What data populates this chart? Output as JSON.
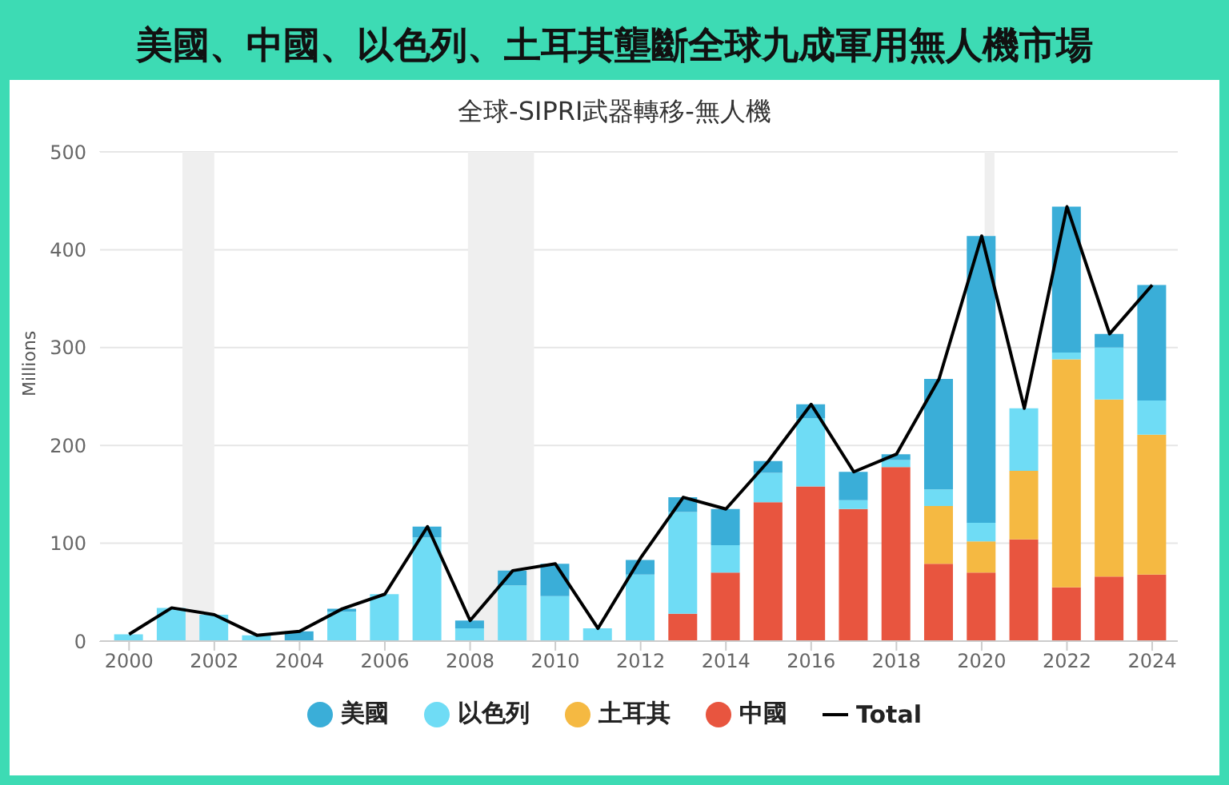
{
  "chart_data": {
    "type": "bar",
    "title": "美國、中國、以色列、土耳其壟斷全球九成軍用無人機市場",
    "subtitle": "全球-SIPRI武器轉移-無人機",
    "ylabel": "Millions",
    "x": [
      2000,
      2001,
      2002,
      2003,
      2004,
      2005,
      2006,
      2007,
      2008,
      2009,
      2010,
      2011,
      2012,
      2013,
      2014,
      2015,
      2016,
      2017,
      2018,
      2019,
      2020,
      2021,
      2022,
      2023,
      2024
    ],
    "stacked": true,
    "series": [
      {
        "name": "中國",
        "color": "#e8553f",
        "values": [
          0,
          0,
          0,
          0,
          0,
          0,
          0,
          0,
          0,
          0,
          0,
          0,
          null,
          28,
          70,
          142,
          158,
          135,
          178,
          79,
          70,
          104,
          55,
          66,
          68
        ]
      },
      {
        "name": "土耳其",
        "color": "#f5b942",
        "values": [
          0,
          0,
          0,
          0,
          0,
          0,
          0,
          0,
          0,
          0,
          0,
          0,
          0,
          0,
          0,
          0,
          0,
          0,
          0,
          59,
          32,
          70,
          233,
          181,
          143
        ]
      },
      {
        "name": "以色列",
        "color": "#6fdcf5",
        "values": [
          7,
          34,
          27,
          6,
          0,
          30,
          48,
          106,
          13,
          57,
          46,
          13,
          68,
          104,
          28,
          30,
          70,
          9,
          7,
          17,
          19,
          64,
          7,
          53,
          35
        ]
      },
      {
        "name": "美國",
        "color": "#3aaed8",
        "values": [
          0,
          0,
          0,
          0,
          10,
          3,
          0,
          11,
          8,
          15,
          33,
          0,
          15,
          15,
          37,
          12,
          14,
          29,
          6,
          113,
          293,
          0,
          149,
          14,
          118
        ]
      },
      {
        "name": "Total",
        "type": "line",
        "color": "#000000",
        "values": [
          7,
          34,
          27,
          6,
          10,
          33,
          48,
          117,
          21,
          72,
          79,
          13,
          85,
          147,
          135,
          184,
          242,
          173,
          191,
          268,
          414,
          238,
          444,
          314,
          364
        ]
      }
    ],
    "xlim": [
      1999.3,
      2024.6
    ],
    "xticks": [
      2000,
      2002,
      2004,
      2006,
      2008,
      2010,
      2012,
      2014,
      2016,
      2018,
      2020,
      2022,
      2024
    ],
    "ylim": [
      0,
      500
    ],
    "yticks": [
      0,
      100,
      200,
      300,
      400,
      500
    ],
    "bands": [
      {
        "axis": "x",
        "from": 2001.25,
        "to": 2002.0,
        "color": "#efefef"
      },
      {
        "axis": "x",
        "from": 2007.95,
        "to": 2009.5,
        "color": "#efefef"
      },
      {
        "axis": "x",
        "from": 2020.07,
        "to": 2020.3,
        "color": "#efefef"
      }
    ],
    "grid": "y",
    "legend": "bottom",
    "marker": "none",
    "line_style": "solid"
  }
}
